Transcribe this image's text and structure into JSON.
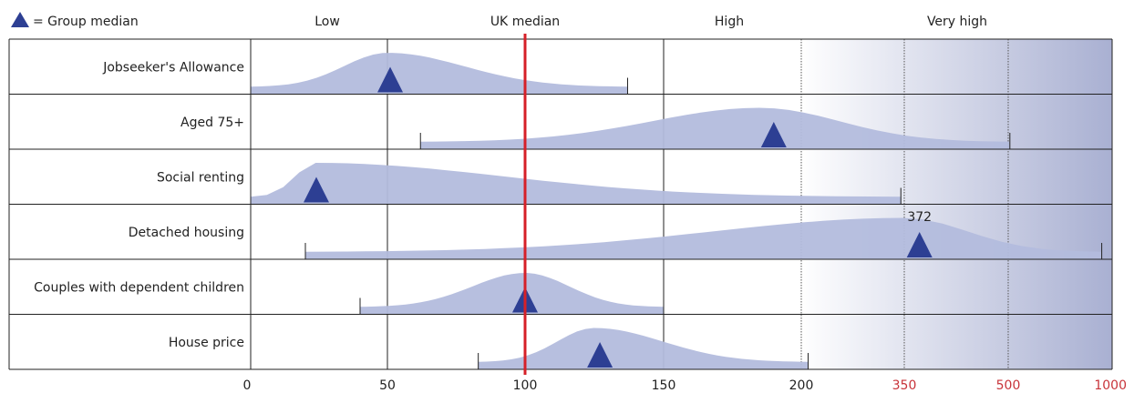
{
  "legend": {
    "marker_label": "= Group median"
  },
  "bands": [
    "Low",
    "UK median",
    "High",
    "Very high"
  ],
  "chart_data": {
    "type": "area",
    "x_ticks": [
      {
        "label": "0",
        "value": 0
      },
      {
        "label": "50",
        "value": 50
      },
      {
        "label": "100",
        "value": 100
      },
      {
        "label": "150",
        "value": 150
      },
      {
        "label": "200",
        "value": 200
      },
      {
        "label": "350",
        "value": 350
      },
      {
        "label": "500",
        "value": 500
      },
      {
        "label": "1000",
        "value": 1000
      }
    ],
    "reference_line": {
      "label": "UK median",
      "value": 100
    },
    "series": [
      {
        "name": "Jobseeker's Allowance",
        "min": 0,
        "max": 137,
        "median": 51,
        "peak": 50,
        "label": ""
      },
      {
        "name": "Aged 75+",
        "min": 62,
        "max": 508,
        "median": 190,
        "peak": 185,
        "label": ""
      },
      {
        "name": "Social renting",
        "min": 0,
        "max": 345,
        "median": 24,
        "peak": 24,
        "label": ""
      },
      {
        "name": "Detached housing",
        "min": 20,
        "max": 950,
        "median": 372,
        "peak": 350,
        "label": "372"
      },
      {
        "name": "Couples with dependent children",
        "min": 40,
        "max": 150,
        "median": 100,
        "peak": 100,
        "label": ""
      },
      {
        "name": "House price",
        "min": 83,
        "max": 210,
        "median": 127,
        "peak": 125,
        "label": ""
      }
    ],
    "colors": {
      "area": "#b3bcdd",
      "marker": "#2d3f93",
      "reference_line": "#d62028",
      "high_tick_labels": "#c8343a"
    }
  }
}
